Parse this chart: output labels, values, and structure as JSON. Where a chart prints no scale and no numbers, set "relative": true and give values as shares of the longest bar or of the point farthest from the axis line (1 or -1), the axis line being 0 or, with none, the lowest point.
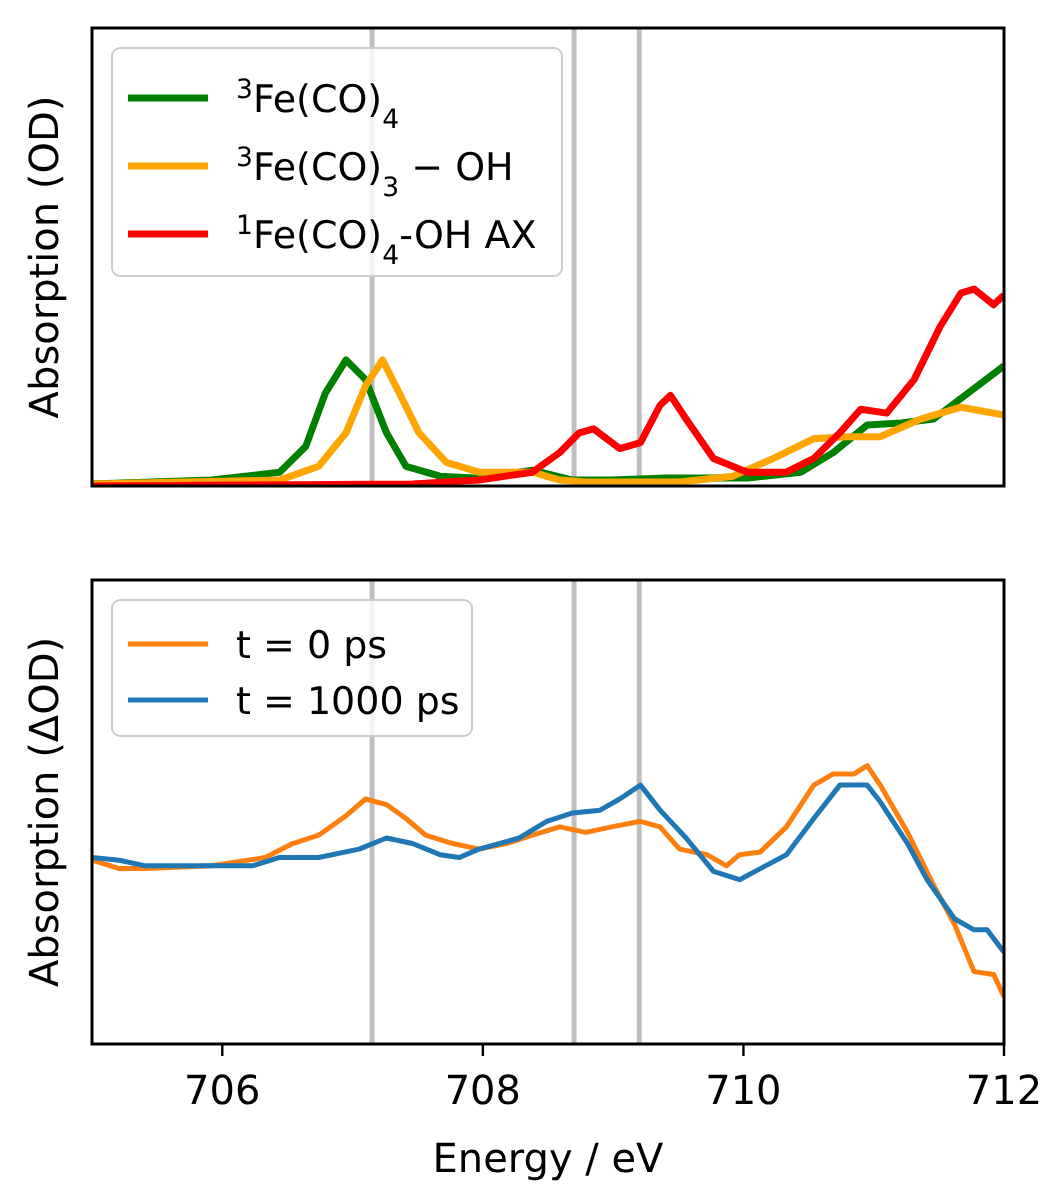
{
  "chart_data": [
    {
      "type": "line",
      "ylabel": "Absorption (OD)",
      "relative": true,
      "xlim": [
        705,
        712
      ],
      "tick_labels": false,
      "legend": "top left",
      "ref_lines": [
        {
          "axis": "x",
          "value": 707.15,
          "color": "#bfbfbf"
        },
        {
          "axis": "x",
          "value": 708.7,
          "color": "#bfbfbf"
        },
        {
          "axis": "x",
          "value": 709.2,
          "color": "#bfbfbf"
        }
      ],
      "series": [
        {
          "name": "$^{3}$Fe(CO)$_{4}$",
          "color": "#008000",
          "x": [
            705.0,
            705.92,
            706.44,
            706.64,
            706.79,
            706.95,
            707.1,
            707.26,
            707.41,
            707.67,
            707.97,
            708.38,
            708.69,
            708.99,
            709.41,
            710.03,
            710.44,
            710.69,
            710.95,
            711.21,
            711.46,
            711.72,
            712.0
          ],
          "values": [
            0.01,
            0.03,
            0.07,
            0.2,
            0.47,
            0.64,
            0.54,
            0.27,
            0.1,
            0.05,
            0.04,
            0.08,
            0.03,
            0.03,
            0.04,
            0.04,
            0.07,
            0.17,
            0.31,
            0.32,
            0.34,
            0.47,
            0.61
          ]
        },
        {
          "name": "$^{3}$Fe(CO)$_{3}$ − OH",
          "color": "#ffa500",
          "x": [
            705.0,
            706.44,
            706.74,
            706.95,
            707.1,
            707.23,
            707.36,
            707.51,
            707.72,
            707.97,
            708.38,
            708.59,
            708.79,
            709.51,
            709.92,
            710.23,
            710.54,
            710.79,
            711.05,
            711.36,
            711.67,
            712.0
          ],
          "values": [
            0.01,
            0.03,
            0.1,
            0.27,
            0.51,
            0.64,
            0.47,
            0.27,
            0.12,
            0.07,
            0.07,
            0.03,
            0.02,
            0.02,
            0.05,
            0.14,
            0.24,
            0.25,
            0.25,
            0.34,
            0.4,
            0.36
          ]
        },
        {
          "name": "$^{1}$Fe(CO)$_{4}$-OH AX",
          "color": "#ff0000",
          "x": [
            705.0,
            707.46,
            707.97,
            708.38,
            708.59,
            708.74,
            708.85,
            709.05,
            709.21,
            709.36,
            709.44,
            709.56,
            709.77,
            710.03,
            710.33,
            710.54,
            710.74,
            710.9,
            711.1,
            711.31,
            711.51,
            711.67,
            711.77,
            711.92,
            712.0
          ],
          "values": [
            0.0,
            0.01,
            0.03,
            0.07,
            0.17,
            0.27,
            0.29,
            0.19,
            0.22,
            0.41,
            0.46,
            0.34,
            0.14,
            0.07,
            0.07,
            0.14,
            0.27,
            0.39,
            0.37,
            0.54,
            0.81,
            0.98,
            1.0,
            0.92,
            0.97
          ]
        }
      ]
    },
    {
      "type": "line",
      "ylabel": "Absorption (ΔOD)",
      "xlabel": "Energy / eV",
      "relative": true,
      "xlim": [
        705,
        712
      ],
      "xticks": [
        706,
        708,
        710,
        712
      ],
      "tick_labels": "x",
      "legend": "top left",
      "ref_lines": [
        {
          "axis": "x",
          "value": 707.15,
          "color": "#bfbfbf"
        },
        {
          "axis": "x",
          "value": 708.7,
          "color": "#bfbfbf"
        },
        {
          "axis": "x",
          "value": 709.2,
          "color": "#bfbfbf"
        }
      ],
      "series": [
        {
          "name": "t = 0 ps",
          "color": "#ff7f0e",
          "x": [
            705.0,
            705.21,
            705.41,
            705.92,
            706.33,
            706.54,
            706.74,
            706.95,
            707.1,
            707.26,
            707.41,
            707.56,
            707.77,
            707.97,
            708.18,
            708.38,
            708.59,
            708.79,
            708.99,
            709.21,
            709.36,
            709.51,
            709.72,
            709.87,
            709.97,
            710.13,
            710.33,
            710.54,
            710.69,
            710.85,
            710.95,
            711.05,
            711.26,
            711.46,
            711.62,
            711.77,
            711.92,
            712.0
          ],
          "values": [
            0.66,
            0.63,
            0.63,
            0.64,
            0.67,
            0.72,
            0.75,
            0.82,
            0.88,
            0.86,
            0.81,
            0.75,
            0.72,
            0.7,
            0.72,
            0.75,
            0.78,
            0.76,
            0.78,
            0.8,
            0.78,
            0.7,
            0.68,
            0.64,
            0.68,
            0.69,
            0.78,
            0.93,
            0.97,
            0.97,
            1.0,
            0.93,
            0.76,
            0.57,
            0.43,
            0.26,
            0.25,
            0.17
          ]
        },
        {
          "name": "t = 1000 ps",
          "color": "#1f77b4",
          "x": [
            705.0,
            705.21,
            705.41,
            705.92,
            706.23,
            706.44,
            706.74,
            707.05,
            707.26,
            707.46,
            707.67,
            707.82,
            707.97,
            708.28,
            708.49,
            708.69,
            708.9,
            709.05,
            709.21,
            709.36,
            709.56,
            709.77,
            709.97,
            710.13,
            710.33,
            710.54,
            710.74,
            710.95,
            711.05,
            711.26,
            711.41,
            711.62,
            711.77,
            711.87,
            712.0
          ],
          "values": [
            0.67,
            0.66,
            0.64,
            0.64,
            0.64,
            0.67,
            0.67,
            0.7,
            0.74,
            0.72,
            0.68,
            0.67,
            0.7,
            0.74,
            0.8,
            0.83,
            0.84,
            0.88,
            0.93,
            0.84,
            0.74,
            0.62,
            0.59,
            0.63,
            0.68,
            0.81,
            0.93,
            0.93,
            0.87,
            0.72,
            0.59,
            0.45,
            0.41,
            0.41,
            0.33
          ]
        }
      ]
    }
  ]
}
